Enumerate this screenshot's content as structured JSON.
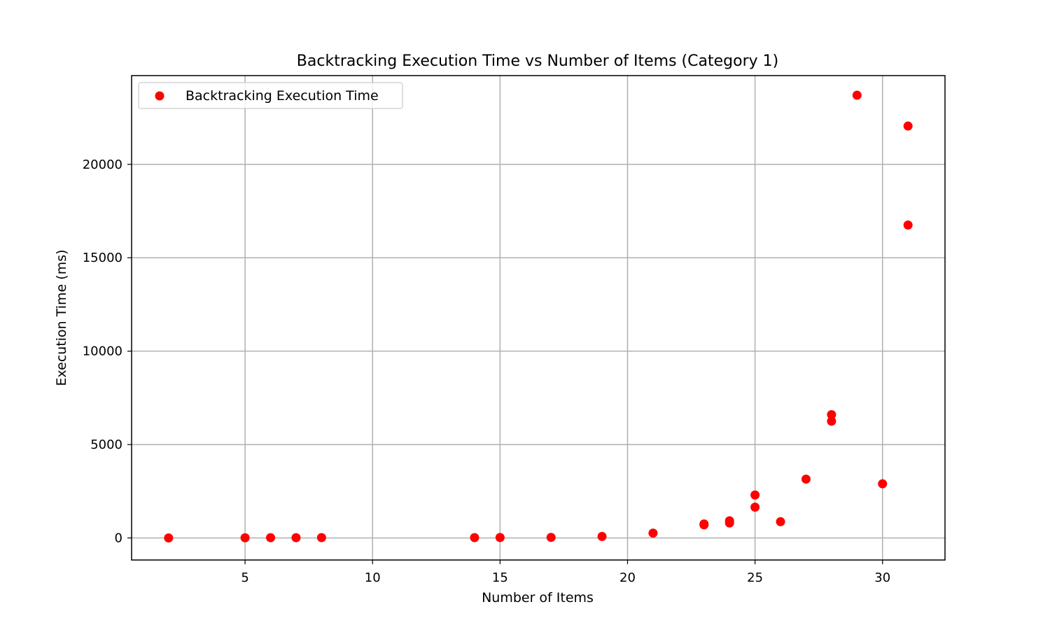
{
  "chart_data": {
    "type": "scatter",
    "title": "Backtracking Execution Time vs Number of Items (Category 1)",
    "xlabel": "Number of Items",
    "ylabel": "Execution Time (ms)",
    "xlim": [
      0.55,
      32.45
    ],
    "ylim": [
      -1180,
      24750
    ],
    "xticks": [
      5,
      10,
      15,
      20,
      25,
      30
    ],
    "yticks": [
      0,
      5000,
      10000,
      15000,
      20000
    ],
    "grid": true,
    "legend_position": "top-left",
    "series": [
      {
        "name": "Backtracking Execution Time",
        "color": "#ff0000",
        "points": [
          {
            "x": 2,
            "y": 0
          },
          {
            "x": 5,
            "y": 10
          },
          {
            "x": 6,
            "y": 15
          },
          {
            "x": 7,
            "y": 15
          },
          {
            "x": 8,
            "y": 20
          },
          {
            "x": 14,
            "y": 20
          },
          {
            "x": 15,
            "y": 25
          },
          {
            "x": 17,
            "y": 30
          },
          {
            "x": 19,
            "y": 80
          },
          {
            "x": 21,
            "y": 260
          },
          {
            "x": 23,
            "y": 700
          },
          {
            "x": 23,
            "y": 750
          },
          {
            "x": 24,
            "y": 800
          },
          {
            "x": 24,
            "y": 920
          },
          {
            "x": 25,
            "y": 1650
          },
          {
            "x": 25,
            "y": 2300
          },
          {
            "x": 26,
            "y": 870
          },
          {
            "x": 27,
            "y": 3150
          },
          {
            "x": 28,
            "y": 6250
          },
          {
            "x": 28,
            "y": 6600
          },
          {
            "x": 29,
            "y": 23700
          },
          {
            "x": 30,
            "y": 2900
          },
          {
            "x": 31,
            "y": 16750
          },
          {
            "x": 31,
            "y": 22050
          }
        ]
      }
    ]
  }
}
